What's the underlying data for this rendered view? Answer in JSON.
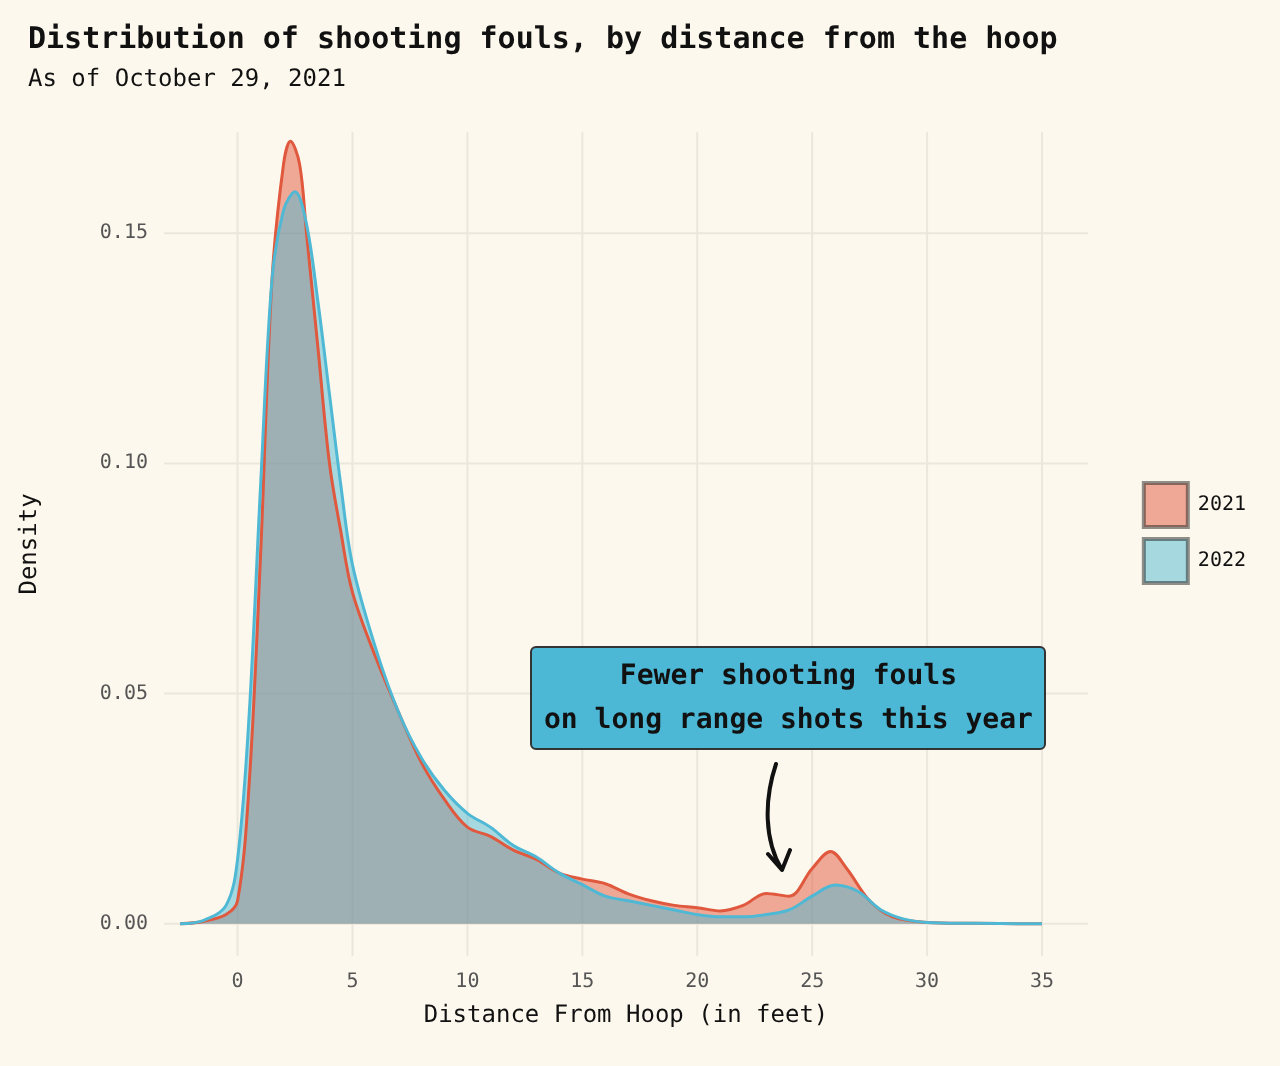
{
  "chart_data": {
    "type": "area",
    "title": "Distribution of shooting fouls, by distance from the hoop",
    "subtitle": "As of October 29, 2021",
    "xlabel": "Distance From Hoop (in feet)",
    "ylabel": "Density",
    "xlim": [
      -3.2,
      37
    ],
    "xticks": [
      0,
      5,
      10,
      15,
      20,
      25,
      30,
      35
    ],
    "ylim": [
      -0.007,
      0.172
    ],
    "yticks": [
      {
        "value": 0,
        "label": "0.00"
      },
      {
        "value": 0.05,
        "label": "0.05"
      },
      {
        "value": 0.1,
        "label": "0.10"
      },
      {
        "value": 0.15,
        "label": "0.15"
      }
    ],
    "grid": true,
    "legend": "right",
    "annotations": [
      "Fewer shooting fouls\non long range shots this year"
    ],
    "series": [
      {
        "name": "2021",
        "color": "#e0583d",
        "x": [
          -2.5,
          -1.5,
          -0.5,
          0,
          0.5,
          1,
          1.5,
          2,
          2.3,
          2.7,
          3,
          3.5,
          4,
          4.5,
          5,
          6,
          7,
          8,
          9,
          10,
          11,
          12,
          13,
          14,
          15,
          16,
          17,
          18,
          19,
          20,
          21,
          22,
          23,
          24,
          25,
          25.8,
          26.5,
          27.5,
          28.5,
          30,
          32,
          35
        ],
        "values": [
          0,
          0.0005,
          0.002,
          0.005,
          0.03,
          0.08,
          0.14,
          0.165,
          0.17,
          0.165,
          0.15,
          0.125,
          0.1,
          0.085,
          0.072,
          0.058,
          0.046,
          0.035,
          0.027,
          0.021,
          0.019,
          0.016,
          0.014,
          0.011,
          0.0097,
          0.0087,
          0.0065,
          0.005,
          0.004,
          0.0035,
          0.0028,
          0.004,
          0.0066,
          0.006,
          0.012,
          0.0157,
          0.012,
          0.005,
          0.0015,
          0.0003,
          0.0001,
          0
        ]
      },
      {
        "name": "2022",
        "color": "#4fb8d4",
        "x": [
          -2.5,
          -1.5,
          -0.5,
          0,
          0.5,
          1,
          1.5,
          2,
          2.5,
          3,
          3.5,
          4,
          4.5,
          5,
          6,
          7,
          8,
          9,
          10,
          11,
          12,
          13,
          14,
          15,
          16,
          17,
          18,
          19,
          20,
          21,
          22,
          23,
          24,
          25,
          26,
          27,
          28,
          29,
          30,
          32,
          35
        ],
        "values": [
          0,
          0.0007,
          0.004,
          0.014,
          0.045,
          0.095,
          0.14,
          0.155,
          0.159,
          0.152,
          0.135,
          0.115,
          0.095,
          0.078,
          0.06,
          0.046,
          0.036,
          0.029,
          0.024,
          0.021,
          0.017,
          0.0145,
          0.011,
          0.0085,
          0.006,
          0.005,
          0.004,
          0.003,
          0.002,
          0.0015,
          0.0015,
          0.002,
          0.003,
          0.006,
          0.0084,
          0.007,
          0.003,
          0.001,
          0.0003,
          0.0001,
          0
        ]
      }
    ]
  }
}
